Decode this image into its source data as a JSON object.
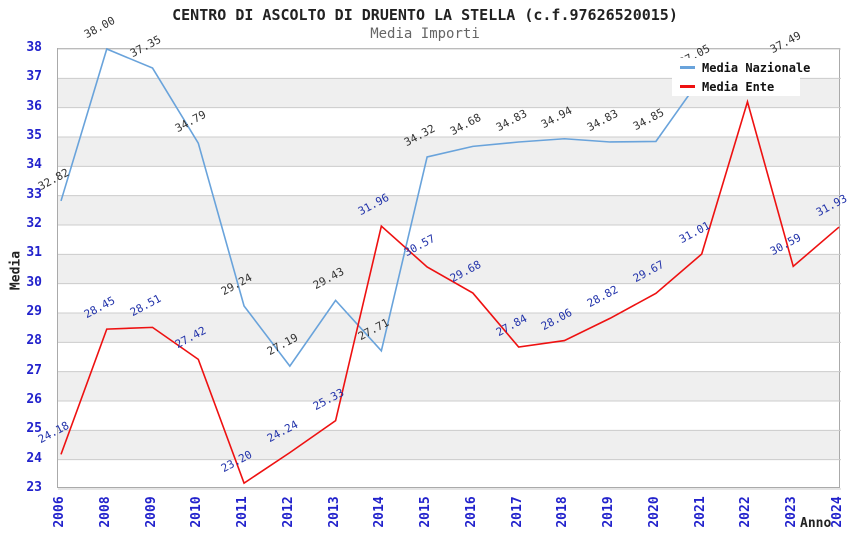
{
  "title": "CENTRO DI ASCOLTO DI DRUENTO LA STELLA (c.f.97626520015)",
  "subtitle": "Media Importi",
  "legend": [
    {
      "label": "Media Nazionale",
      "color": "#69a3db"
    },
    {
      "label": "Media Ente",
      "color": "#ee1111"
    }
  ],
  "y_axis": {
    "title": "Media",
    "min": 23,
    "max": 38,
    "ticks": [
      38,
      37,
      36,
      35,
      34,
      33,
      32,
      31,
      30,
      29,
      28,
      27,
      26,
      25,
      24,
      23
    ],
    "tick_color": "#2222cc"
  },
  "x_axis": {
    "title": "Anno",
    "categories": [
      "2006",
      "2008",
      "2009",
      "2010",
      "2011",
      "2012",
      "2013",
      "2014",
      "2015",
      "2016",
      "2017",
      "2018",
      "2019",
      "2020",
      "2021",
      "2022",
      "2023",
      "2024"
    ],
    "tick_color": "#2222cc"
  },
  "chart_data": {
    "type": "line",
    "categories": [
      "2006",
      "2008",
      "2009",
      "2010",
      "2011",
      "2012",
      "2013",
      "2014",
      "2015",
      "2016",
      "2017",
      "2018",
      "2019",
      "2020",
      "2021",
      "2022",
      "2023",
      "2024"
    ],
    "series": [
      {
        "name": "Media Nazionale",
        "color": "#69a3db",
        "label_color": "#333333",
        "values": [
          32.82,
          38.0,
          37.35,
          34.79,
          29.24,
          27.19,
          29.43,
          27.71,
          34.32,
          34.68,
          34.83,
          34.94,
          34.83,
          34.85,
          37.05,
          null,
          37.49,
          null
        ],
        "hidden_label_indices": []
      },
      {
        "name": "Media Ente",
        "color": "#ee1111",
        "label_color": "#2233aa",
        "values": [
          24.18,
          28.45,
          28.51,
          27.42,
          23.2,
          24.24,
          25.33,
          31.96,
          30.57,
          29.68,
          27.84,
          28.06,
          28.82,
          29.67,
          31.01,
          36.2,
          30.59,
          31.93
        ],
        "hidden_label_indices": [
          15
        ]
      }
    ],
    "title": "CENTRO DI ASCOLTO DI DRUENTO LA STELLA (c.f.97626520015)",
    "xlabel": "Anno",
    "ylabel": "Media",
    "ylim": [
      23,
      38
    ],
    "grid": "horizontal gridlines with alternating white/grey bands",
    "legend_position": "top-right inside plot"
  },
  "style": {
    "band_grey": "#efefef",
    "gridline": "#cccccc",
    "plot_border": "#aaaaaa"
  }
}
